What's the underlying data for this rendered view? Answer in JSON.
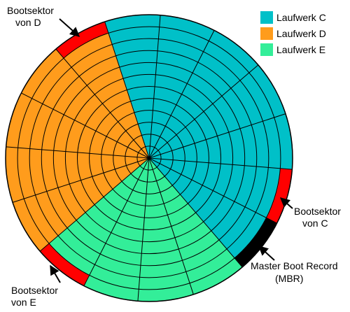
{
  "legend": [
    {
      "label": "Laufwerk C",
      "color": "#00c0c8"
    },
    {
      "label": "Laufwerk D",
      "color": "#ff9c1c"
    },
    {
      "label": "Laufwerk E",
      "color": "#33ee99"
    }
  ],
  "annotations": [
    {
      "lines": [
        "Bootsektor",
        "von D"
      ]
    },
    {
      "lines": [
        "Bootsektor",
        "von C"
      ]
    },
    {
      "lines": [
        "Master Boot Record",
        "(MBR)"
      ]
    },
    {
      "lines": [
        "Bootsektor",
        "von E"
      ]
    }
  ]
}
